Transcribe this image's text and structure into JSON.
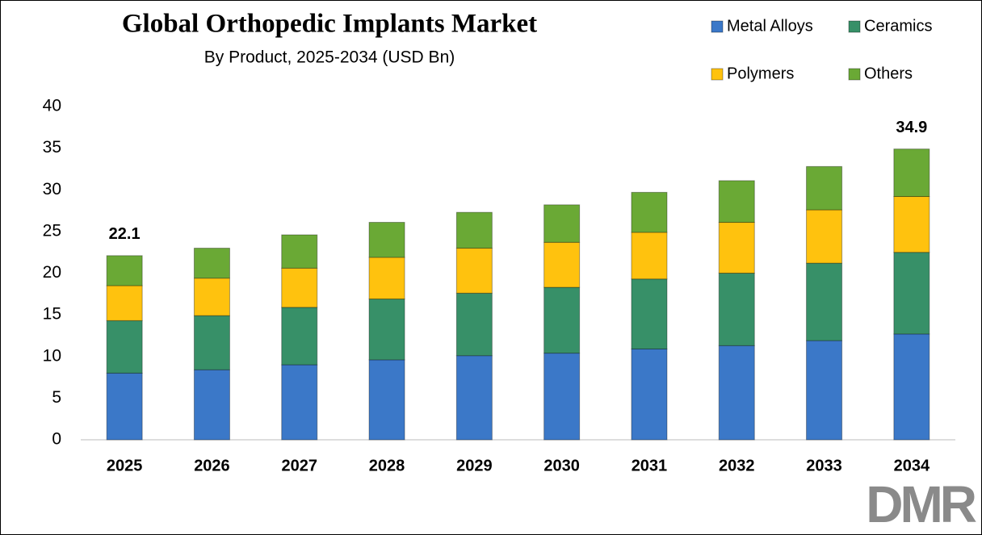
{
  "chart_data": {
    "type": "stacked-bar",
    "title": "Global Orthopedic Implants Market",
    "subtitle": "By Product, 2025-2034 (USD Bn)",
    "categories": [
      "2025",
      "2026",
      "2027",
      "2028",
      "2029",
      "2030",
      "2031",
      "2032",
      "2033",
      "2034"
    ],
    "series": [
      {
        "name": "Metal Alloys",
        "color": "#3b78c8",
        "values": [
          8.0,
          8.4,
          9.0,
          9.6,
          10.1,
          10.4,
          10.9,
          11.3,
          11.9,
          12.7
        ]
      },
      {
        "name": "Ceramics",
        "color": "#379068",
        "values": [
          6.3,
          6.5,
          6.9,
          7.3,
          7.5,
          7.9,
          8.4,
          8.7,
          9.3,
          9.8
        ]
      },
      {
        "name": "Polymers",
        "color": "#ffc20e",
        "values": [
          4.2,
          4.5,
          4.7,
          5.0,
          5.4,
          5.4,
          5.6,
          6.1,
          6.4,
          6.7
        ]
      },
      {
        "name": "Others",
        "color": "#6aa935",
        "values": [
          3.6,
          3.6,
          4.0,
          4.2,
          4.3,
          4.5,
          4.8,
          5.0,
          5.2,
          5.7
        ]
      }
    ],
    "annotations": [
      {
        "x": "2025",
        "value": 22.1
      },
      {
        "x": "2034",
        "value": 34.9
      }
    ],
    "ylim": [
      0,
      40
    ],
    "yticks": [
      0,
      5,
      10,
      15,
      20,
      25,
      30,
      35,
      40
    ],
    "grid": false,
    "legend": "top-right",
    "logo": "DMR"
  }
}
